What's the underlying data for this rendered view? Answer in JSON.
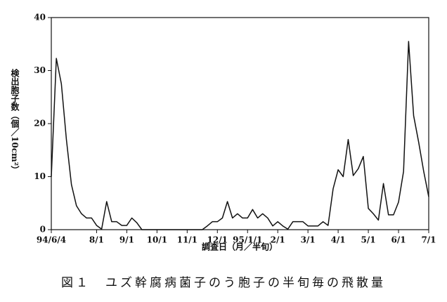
{
  "chart_data": {
    "type": "line",
    "y_label": "検出胞子数（個／10cm²）",
    "x_label": "調査日（月／半旬）",
    "caption": "図１　ユズ幹腐病菌子のう胞子の半旬毎の飛散量",
    "x": [
      0,
      1,
      2,
      3,
      4,
      5,
      6,
      7,
      8,
      9,
      10,
      11,
      12,
      13,
      14,
      15,
      16,
      17,
      18,
      19,
      20,
      21,
      22,
      23,
      24,
      25,
      26,
      27,
      28,
      29,
      30,
      31,
      32,
      33,
      34,
      35,
      36,
      37,
      38,
      39,
      40,
      41,
      42,
      43,
      44,
      45,
      46,
      47,
      48,
      49,
      50,
      51,
      52,
      53,
      54,
      55,
      56,
      57,
      58,
      59,
      60,
      61,
      62,
      63,
      64,
      65,
      66,
      67,
      68,
      69,
      70,
      71,
      72,
      73,
      74,
      75
    ],
    "values": [
      10,
      32.3,
      27.5,
      17,
      8.5,
      4.5,
      3,
      2.2,
      2.2,
      0.8,
      0.1,
      5.3,
      1.5,
      1.5,
      0.8,
      0.8,
      2.2,
      1.3,
      0,
      0,
      0,
      0,
      0,
      0,
      0,
      0,
      0,
      0,
      0,
      0,
      0,
      0.7,
      1.5,
      1.5,
      2.2,
      5.3,
      2.2,
      3,
      2.2,
      2.2,
      3.8,
      2.2,
      3,
      2.2,
      0.7,
      1.5,
      0.7,
      0.1,
      1.5,
      1.5,
      1.5,
      0.7,
      0.7,
      0.7,
      1.5,
      0.8,
      7.7,
      11.3,
      10,
      17,
      10.2,
      11.5,
      13.8,
      4,
      3,
      1.8,
      8.7,
      2.8,
      2.8,
      5.2,
      11,
      35.5,
      21.5,
      16.5,
      11,
      6.2
    ],
    "color": "#111111",
    "xlim": [
      0,
      75
    ],
    "xticks": [
      {
        "value": 0,
        "label": "94/6/4"
      },
      {
        "value": 9,
        "label": "8/1"
      },
      {
        "value": 15,
        "label": "9/1"
      },
      {
        "value": 21,
        "label": "10/1"
      },
      {
        "value": 27,
        "label": "11/1"
      },
      {
        "value": 33,
        "label": "12/1"
      },
      {
        "value": 39,
        "label": "95/1/1"
      },
      {
        "value": 45,
        "label": "2/1"
      },
      {
        "value": 51,
        "label": "3/1"
      },
      {
        "value": 57,
        "label": "4/1"
      },
      {
        "value": 63,
        "label": "5/1"
      },
      {
        "value": 69,
        "label": "6/1"
      },
      {
        "value": 75,
        "label": "7/1"
      }
    ],
    "ylim": [
      0,
      40
    ],
    "yticks": [
      0,
      10,
      20,
      30,
      40
    ]
  }
}
